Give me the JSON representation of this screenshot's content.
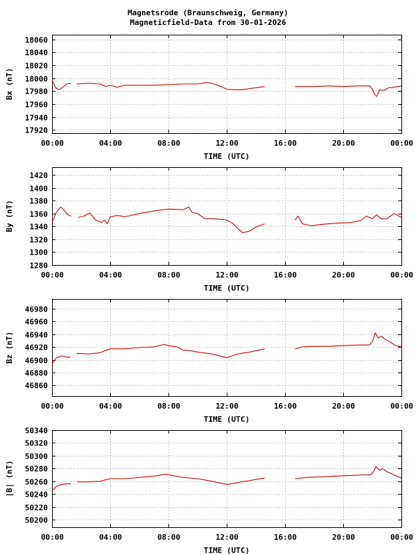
{
  "title": {
    "line1": "Magnetsrode (Braunschweig, Germany)",
    "line2": "Magneticfield-Data from 30-01-2026"
  },
  "colors": {
    "series": "#cc0000",
    "grid": "#a0a0a0",
    "axis": "#000000"
  },
  "chart_data": [
    {
      "type": "line",
      "ylabel": "Bx (nT)",
      "xlabel": "TIME (UTC)",
      "ylim": [
        17915,
        18067
      ],
      "yticks": [
        17920,
        17940,
        17960,
        17980,
        18000,
        18020,
        18040,
        18060
      ],
      "xlim": [
        0,
        24
      ],
      "xticks": [
        "00:00",
        "04:00",
        "08:00",
        "12:00",
        "16:00",
        "20:00",
        "00:00"
      ],
      "grid": true,
      "series": [
        {
          "segments": [
            [
              [
                0,
                17997
              ],
              [
                0.25,
                17985
              ],
              [
                0.5,
                17982
              ],
              [
                0.8,
                17987
              ],
              [
                1.0,
                17991
              ],
              [
                1.3,
                17992
              ]
            ],
            [
              [
                1.7,
                17991
              ],
              [
                2.5,
                17992
              ],
              [
                3.3,
                17991
              ],
              [
                3.7,
                17987
              ],
              [
                4.0,
                17989
              ],
              [
                4.5,
                17986
              ],
              [
                5.0,
                17989
              ],
              [
                6.0,
                17989
              ],
              [
                7.0,
                17989
              ],
              [
                8.0,
                17990
              ],
              [
                9.0,
                17991
              ],
              [
                10.0,
                17991
              ],
              [
                10.6,
                17993
              ],
              [
                11.0,
                17992
              ],
              [
                11.6,
                17987
              ],
              [
                12.0,
                17983
              ],
              [
                12.6,
                17982
              ],
              [
                13.0,
                17982
              ],
              [
                13.6,
                17984
              ],
              [
                14.0,
                17985
              ],
              [
                14.6,
                17987
              ]
            ],
            [
              [
                16.7,
                17987
              ],
              [
                17.5,
                17987
              ],
              [
                18.0,
                17987
              ],
              [
                19.0,
                17988
              ],
              [
                20.0,
                17987
              ],
              [
                21.0,
                17988
              ],
              [
                21.8,
                17988
              ],
              [
                22.0,
                17983
              ],
              [
                22.15,
                17975
              ],
              [
                22.3,
                17972
              ],
              [
                22.5,
                17982
              ],
              [
                22.8,
                17981
              ],
              [
                23.1,
                17985
              ],
              [
                23.5,
                17986
              ],
              [
                24.0,
                17988
              ]
            ]
          ]
        }
      ]
    },
    {
      "type": "line",
      "ylabel": "By (nT)",
      "xlabel": "TIME (UTC)",
      "ylim": [
        1280,
        1432
      ],
      "yticks": [
        1280,
        1300,
        1320,
        1340,
        1360,
        1380,
        1400,
        1420
      ],
      "xlim": [
        0,
        24
      ],
      "xticks": [
        "00:00",
        "04:00",
        "08:00",
        "12:00",
        "16:00",
        "20:00",
        "00:00"
      ],
      "grid": true,
      "series": [
        {
          "segments": [
            [
              [
                0,
                1346
              ],
              [
                0.3,
                1362
              ],
              [
                0.6,
                1370
              ],
              [
                0.8,
                1366
              ],
              [
                1.1,
                1358
              ],
              [
                1.3,
                1356
              ]
            ],
            [
              [
                1.8,
                1354
              ],
              [
                2.2,
                1356
              ],
              [
                2.6,
                1361
              ],
              [
                3.0,
                1350
              ],
              [
                3.4,
                1346
              ],
              [
                3.6,
                1350
              ],
              [
                3.8,
                1344
              ],
              [
                4.0,
                1355
              ],
              [
                4.5,
                1357
              ],
              [
                5.0,
                1355
              ],
              [
                6.0,
                1360
              ],
              [
                7.0,
                1364
              ],
              [
                8.0,
                1367
              ],
              [
                9.0,
                1366
              ],
              [
                9.4,
                1370
              ],
              [
                9.6,
                1362
              ],
              [
                10.0,
                1360
              ],
              [
                10.5,
                1352
              ],
              [
                11.0,
                1352
              ],
              [
                12.0,
                1350
              ],
              [
                12.4,
                1345
              ],
              [
                12.8,
                1336
              ],
              [
                13.1,
                1330
              ],
              [
                13.6,
                1333
              ],
              [
                14.0,
                1339
              ],
              [
                14.6,
                1344
              ]
            ],
            [
              [
                16.7,
                1350
              ],
              [
                16.9,
                1356
              ],
              [
                17.2,
                1344
              ],
              [
                17.8,
                1341
              ],
              [
                18.5,
                1343
              ],
              [
                19.5,
                1345
              ],
              [
                20.5,
                1346
              ],
              [
                21.2,
                1349
              ],
              [
                21.6,
                1356
              ],
              [
                22.0,
                1352
              ],
              [
                22.3,
                1358
              ],
              [
                22.6,
                1352
              ],
              [
                23.0,
                1352
              ],
              [
                23.5,
                1360
              ],
              [
                24.0,
                1354
              ]
            ]
          ]
        }
      ]
    },
    {
      "type": "line",
      "ylabel": "Bz (nT)",
      "xlabel": "TIME (UTC)",
      "ylim": [
        46843,
        46995
      ],
      "yticks": [
        46860,
        46880,
        46900,
        46920,
        46940,
        46960,
        46980
      ],
      "xlim": [
        0,
        24
      ],
      "xticks": [
        "00:00",
        "04:00",
        "08:00",
        "12:00",
        "16:00",
        "20:00",
        "00:00"
      ],
      "grid": true,
      "series": [
        {
          "segments": [
            [
              [
                0,
                46893
              ],
              [
                0.3,
                46903
              ],
              [
                0.7,
                46906
              ],
              [
                1.0,
                46904
              ],
              [
                1.3,
                46904
              ]
            ],
            [
              [
                1.7,
                46910
              ],
              [
                2.5,
                46909
              ],
              [
                3.3,
                46911
              ],
              [
                4.0,
                46917
              ],
              [
                5.0,
                46917
              ],
              [
                6.0,
                46919
              ],
              [
                7.0,
                46920
              ],
              [
                7.7,
                46924
              ],
              [
                8.0,
                46922
              ],
              [
                8.6,
                46920
              ],
              [
                9.0,
                46915
              ],
              [
                9.5,
                46914
              ],
              [
                10.0,
                46912
              ],
              [
                11.0,
                46909
              ],
              [
                12.0,
                46903
              ],
              [
                12.6,
                46908
              ],
              [
                13.0,
                46910
              ],
              [
                13.6,
                46912
              ],
              [
                14.0,
                46914
              ],
              [
                14.6,
                46917
              ]
            ],
            [
              [
                16.7,
                46917
              ],
              [
                17.2,
                46920
              ],
              [
                18.0,
                46921
              ],
              [
                19.0,
                46921
              ],
              [
                20.0,
                46922
              ],
              [
                21.0,
                46923
              ],
              [
                21.8,
                46923
              ],
              [
                22.0,
                46928
              ],
              [
                22.2,
                46942
              ],
              [
                22.4,
                46934
              ],
              [
                22.6,
                46937
              ],
              [
                22.8,
                46933
              ],
              [
                23.2,
                46928
              ],
              [
                23.6,
                46922
              ],
              [
                24.0,
                46920
              ]
            ]
          ]
        }
      ]
    },
    {
      "type": "line",
      "ylabel": "|B| (nT)",
      "xlabel": "TIME (UTC)",
      "ylim": [
        50188,
        50340
      ],
      "yticks": [
        50200,
        50220,
        50240,
        50260,
        50280,
        50300,
        50320,
        50340
      ],
      "xlim": [
        0,
        24
      ],
      "xticks": [
        "00:00",
        "04:00",
        "08:00",
        "12:00",
        "16:00",
        "20:00",
        "00:00"
      ],
      "grid": true,
      "series": [
        {
          "segments": [
            [
              [
                0,
                50245
              ],
              [
                0.3,
                50252
              ],
              [
                0.7,
                50255
              ],
              [
                1.0,
                50256
              ],
              [
                1.3,
                50256
              ]
            ],
            [
              [
                1.7,
                50259
              ],
              [
                2.5,
                50259
              ],
              [
                3.3,
                50260
              ],
              [
                4.0,
                50264
              ],
              [
                5.0,
                50264
              ],
              [
                6.0,
                50266
              ],
              [
                7.0,
                50268
              ],
              [
                7.8,
                50271
              ],
              [
                8.5,
                50268
              ],
              [
                9.0,
                50266
              ],
              [
                10.0,
                50264
              ],
              [
                11.0,
                50260
              ],
              [
                12.0,
                50255
              ],
              [
                12.6,
                50257
              ],
              [
                13.0,
                50259
              ],
              [
                13.6,
                50261
              ],
              [
                14.0,
                50263
              ],
              [
                14.6,
                50265
              ]
            ],
            [
              [
                16.7,
                50264
              ],
              [
                17.5,
                50266
              ],
              [
                18.5,
                50267
              ],
              [
                19.5,
                50268
              ],
              [
                20.5,
                50269
              ],
              [
                21.5,
                50270
              ],
              [
                21.9,
                50270
              ],
              [
                22.1,
                50276
              ],
              [
                22.25,
                50283
              ],
              [
                22.5,
                50277
              ],
              [
                22.7,
                50280
              ],
              [
                23.0,
                50275
              ],
              [
                23.5,
                50270
              ],
              [
                24.0,
                50265
              ]
            ]
          ]
        }
      ]
    }
  ]
}
